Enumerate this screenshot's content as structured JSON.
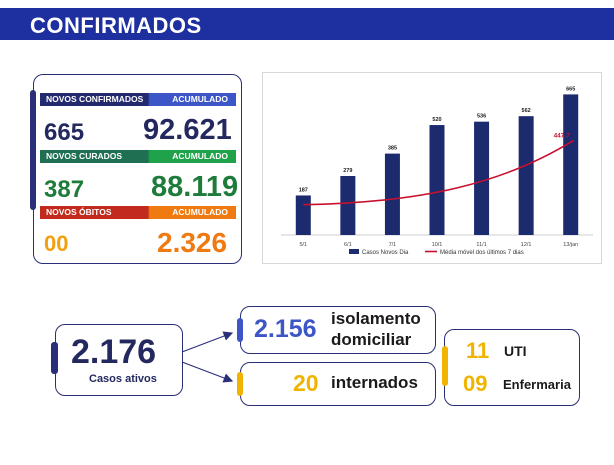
{
  "header": {
    "title": "CONFIRMADOS"
  },
  "stats": {
    "confirmados": {
      "label": "NOVOS CONFIRMADOS",
      "acc_label": "ACUMULADO",
      "day": "665",
      "acc": "92.621"
    },
    "curados": {
      "label": "NOVOS CURADOS",
      "acc_label": "ACUMULADO",
      "day": "387",
      "acc": "88.119"
    },
    "obitos": {
      "label": "NOVOS ÓBITOS",
      "acc_label": "ACUMULADO",
      "day": "00",
      "acc": "2.326"
    }
  },
  "chart_data": {
    "type": "bar",
    "categories": [
      "5/1",
      "6/1",
      "7/1",
      "10/1",
      "11/1",
      "12/1",
      "13/jan"
    ],
    "series": [
      {
        "name": "Casos Novos Dia",
        "type": "bar",
        "values": [
          187,
          279,
          385,
          520,
          536,
          562,
          665
        ],
        "color": "#1c2a6e"
      },
      {
        "name": "Média móvel dos últimos 7 dias",
        "type": "line",
        "values": [
          null,
          null,
          null,
          null,
          null,
          null,
          447.7
        ],
        "color": "#c8102e"
      }
    ],
    "bar_labels": [
      "187",
      "279",
      "385",
      "520",
      "536",
      "562",
      "665"
    ],
    "line_label": "447,7",
    "ylim": [
      0,
      700
    ],
    "grid": false,
    "legend_position": "bottom"
  },
  "ativos": {
    "value": "2.176",
    "label": "Casos ativos"
  },
  "isolamento": {
    "value": "2.156",
    "label_line1": "isolamento",
    "label_line2": "domiciliar"
  },
  "internados": {
    "value": "20",
    "label": "internados"
  },
  "uti": {
    "value": "11",
    "label": "UTI"
  },
  "enfermaria": {
    "value": "09",
    "label": "Enfermaria"
  },
  "colors": {
    "brand_blue": "#1e2fa0",
    "navy": "#23285e",
    "green": "#1e7c3a",
    "orange": "#f07a12",
    "yellow": "#f0b400"
  }
}
